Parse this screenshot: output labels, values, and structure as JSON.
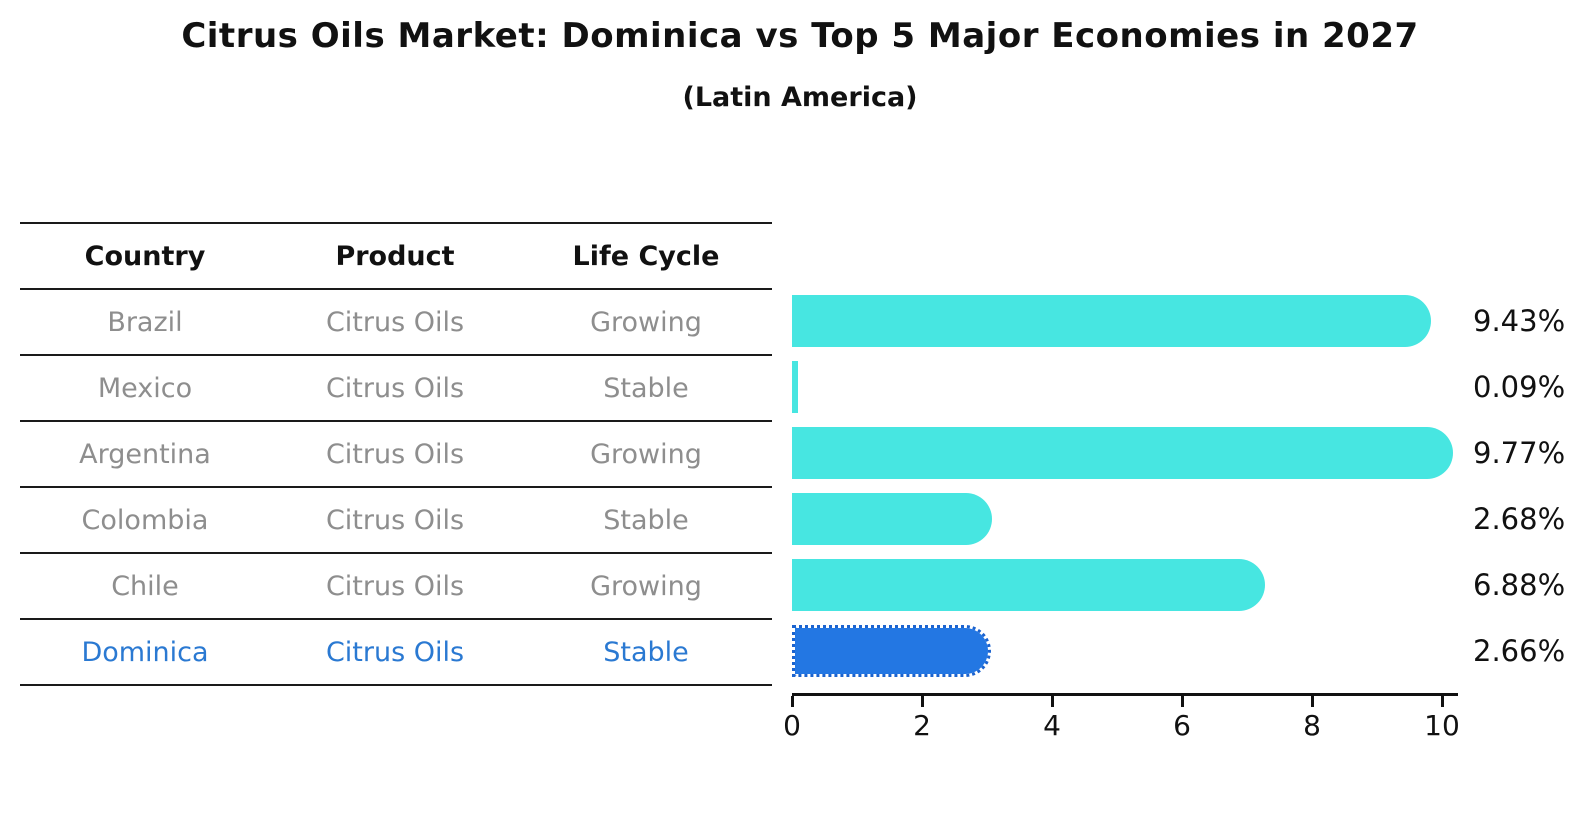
{
  "title": "Citrus Oils Market: Dominica vs Top 5 Major Economies in 2027",
  "subtitle": "(Latin America)",
  "table": {
    "headers": [
      "Country",
      "Product",
      "Life Cycle"
    ],
    "rows": [
      {
        "country": "Brazil",
        "product": "Citrus Oils",
        "life_cycle": "Growing",
        "highlight": false
      },
      {
        "country": "Mexico",
        "product": "Citrus Oils",
        "life_cycle": "Stable",
        "highlight": false
      },
      {
        "country": "Argentina",
        "product": "Citrus Oils",
        "life_cycle": "Growing",
        "highlight": false
      },
      {
        "country": "Colombia",
        "product": "Citrus Oils",
        "life_cycle": "Stable",
        "highlight": false
      },
      {
        "country": "Chile",
        "product": "Citrus Oils",
        "life_cycle": "Growing",
        "highlight": false
      },
      {
        "country": "Dominica",
        "product": "Citrus Oils",
        "life_cycle": "Stable",
        "highlight": true
      }
    ]
  },
  "chart_data": {
    "type": "bar",
    "orientation": "horizontal",
    "title": "Citrus Oils Market: Dominica vs Top 5 Major Economies in 2027",
    "subtitle": "(Latin America)",
    "categories": [
      "Brazil",
      "Mexico",
      "Argentina",
      "Colombia",
      "Chile",
      "Dominica"
    ],
    "values": [
      9.43,
      0.09,
      9.77,
      2.68,
      6.88,
      2.66
    ],
    "value_labels": [
      "9.43%",
      "0.09%",
      "9.77%",
      "2.68%",
      "6.88%",
      "2.66%"
    ],
    "x_ticks": [
      "0",
      "2",
      "4",
      "6",
      "8",
      "10"
    ],
    "xlim": [
      0,
      10.2
    ],
    "grid": false,
    "legend": false,
    "bar_color": "#47e6e1",
    "highlight_bar_color": "#2377e3",
    "highlight_index": 5,
    "highlight_text_color": "#2a79d2"
  }
}
